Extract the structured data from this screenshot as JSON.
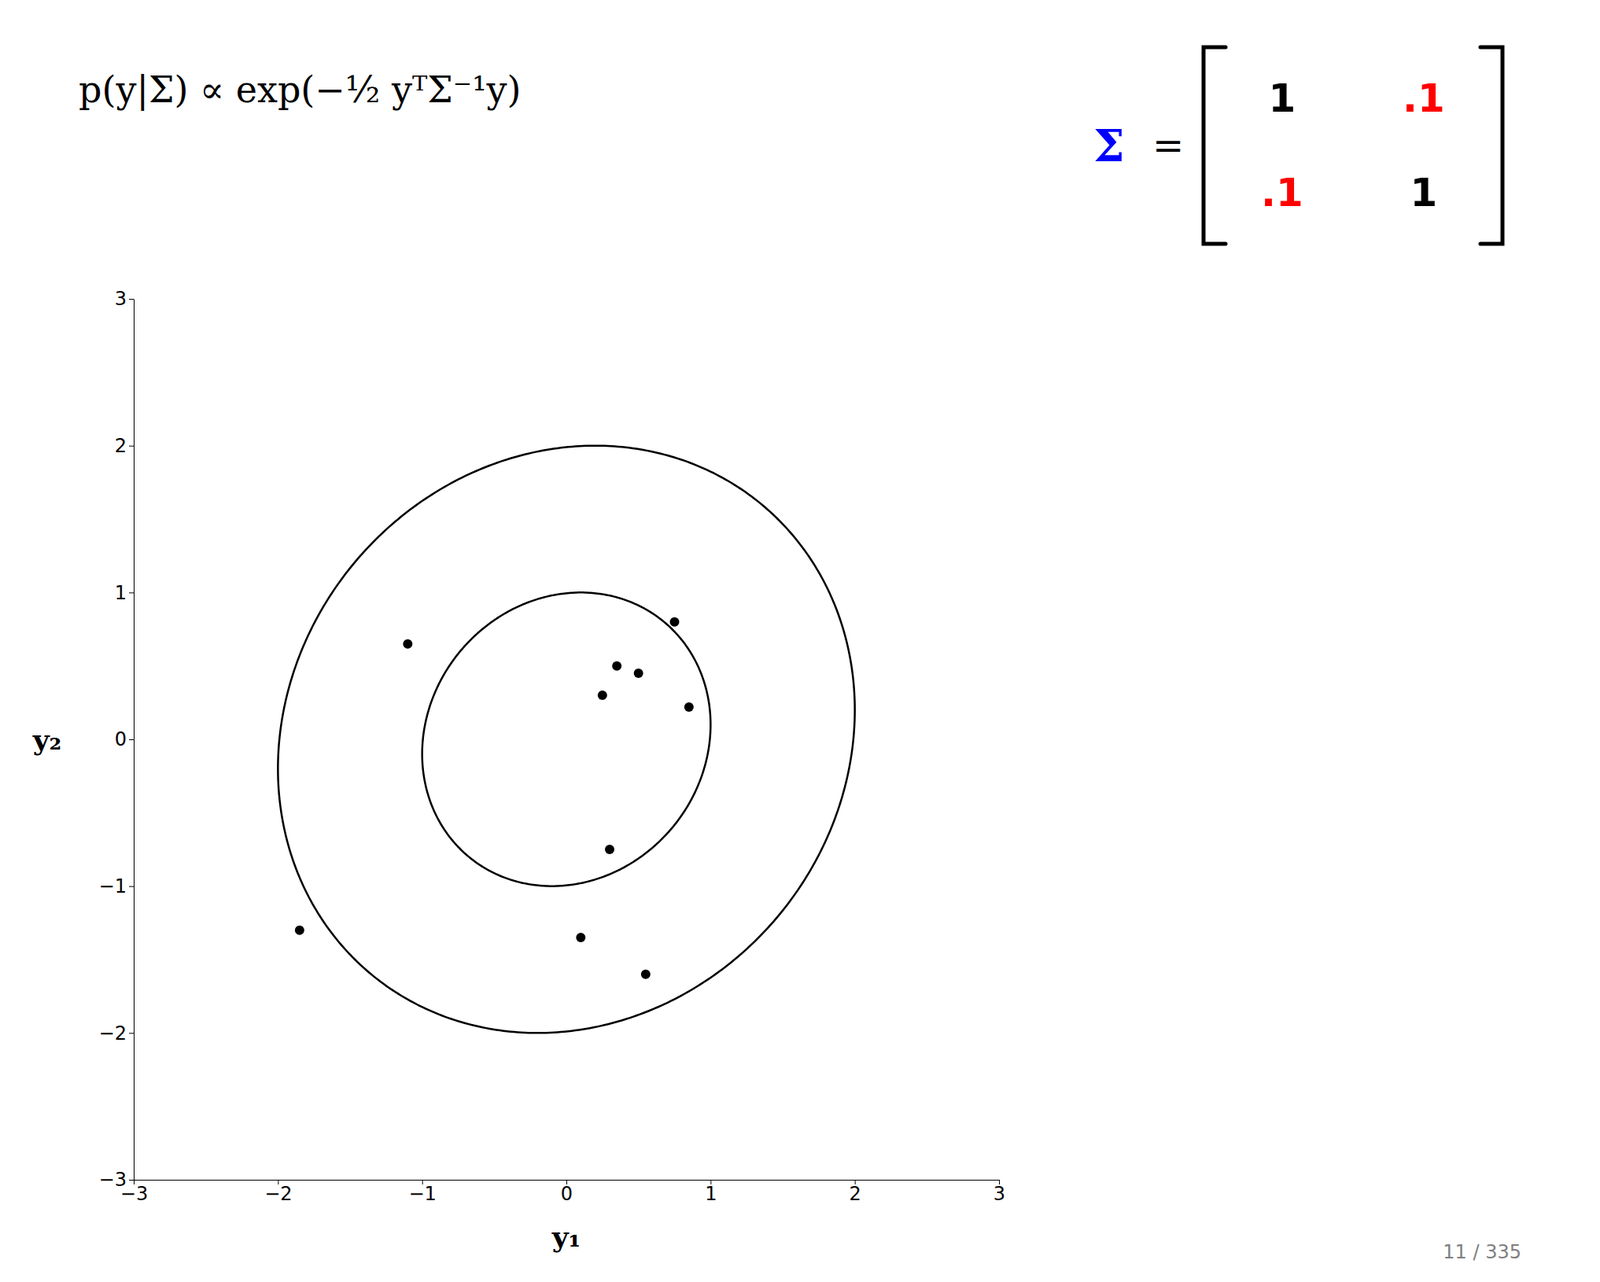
{
  "chart_data": {
    "type": "scatter",
    "title": "p(y|Σ) ∝ exp(−½ yᵀΣ⁻¹y)",
    "xlabel": "y₁",
    "ylabel": "y₂",
    "x": [
      -1.85,
      -1.1,
      0.35,
      0.5,
      0.75,
      0.25,
      0.85,
      0.3,
      0.55,
      0.1
    ],
    "values": [
      -1.3,
      0.65,
      0.5,
      0.45,
      0.8,
      0.3,
      0.22,
      -0.75,
      -1.6,
      -1.35
    ],
    "color": "#000000",
    "contours": {
      "levels": [
        1.0,
        2.0
      ],
      "color": "#000000"
    },
    "matrix": {
      "name": "Σ",
      "name_color": "blue",
      "relation": "=",
      "values": [
        [
          1.0,
          0.1
        ],
        [
          0.1,
          1.0
        ]
      ],
      "value_labels": [
        [
          "1",
          ".1"
        ],
        [
          ".1",
          "1"
        ]
      ],
      "colors": [
        [
          "#000000",
          "red"
        ],
        [
          "red",
          "#000000"
        ]
      ]
    },
    "xlim": [
      -3,
      3
    ],
    "ylim": [
      -3,
      3
    ],
    "xticks": [
      -3,
      -2,
      -1,
      0,
      1,
      2,
      3
    ],
    "yticks": [
      -3,
      -2,
      -1,
      0,
      1,
      2,
      3
    ],
    "grid": false,
    "slide_number": "11 / 335"
  }
}
